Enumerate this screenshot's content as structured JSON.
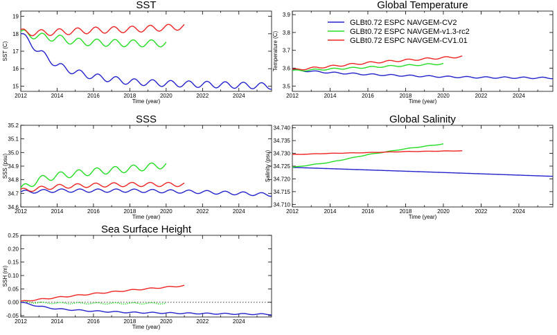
{
  "legend": [
    {
      "name": "GLBt0.72 ESPC NAVGEM-CV2",
      "color": "#2222cc"
    },
    {
      "name": "GLBt0.72 ESPC NAVGEM-v1.3-rc2",
      "color": "#22dd22"
    },
    {
      "name": "GLBt0.72 ESPC NAVGEM-CV1.01",
      "color": "#ee2222"
    }
  ],
  "chart_data": [
    {
      "id": "sst",
      "type": "line",
      "title": "SST",
      "xlabel": "Time (year)",
      "ylabel": "SST (C)",
      "xlim": [
        2012,
        2025.8
      ],
      "ylim": [
        14.7,
        19.3
      ],
      "xticks": [
        2012,
        2014,
        2016,
        2018,
        2020,
        2022,
        2024
      ],
      "yticks": [
        15,
        16,
        17,
        18,
        19
      ],
      "ydecimals": 0,
      "series": [
        {
          "color": "#2222cc",
          "x0": 2012,
          "x1": 2025.8,
          "base": [
            [
              2012,
              18.0
            ],
            [
              2012.5,
              17.5
            ],
            [
              2013,
              17.0
            ],
            [
              2014,
              16.2
            ],
            [
              2015,
              15.8
            ],
            [
              2016,
              15.55
            ],
            [
              2017,
              15.4
            ],
            [
              2018,
              15.25
            ],
            [
              2019,
              15.2
            ],
            [
              2020,
              15.15
            ],
            [
              2022,
              15.1
            ],
            [
              2024,
              15.05
            ],
            [
              2025.8,
              15.0
            ]
          ],
          "amp": 0.18
        },
        {
          "color": "#22dd22",
          "x0": 2012,
          "x1": 2020,
          "base": [
            [
              2012,
              18.05
            ],
            [
              2013,
              17.85
            ],
            [
              2014,
              17.75
            ],
            [
              2015,
              17.55
            ],
            [
              2016,
              17.5
            ],
            [
              2018,
              17.45
            ],
            [
              2020,
              17.45
            ]
          ],
          "amp": 0.2
        },
        {
          "color": "#ee2222",
          "x0": 2012,
          "x1": 2021,
          "base": [
            [
              2012,
              18.1
            ],
            [
              2013,
              18.05
            ],
            [
              2014,
              18.1
            ],
            [
              2016,
              18.2
            ],
            [
              2018,
              18.25
            ],
            [
              2021,
              18.4
            ]
          ],
          "amp": 0.18
        }
      ]
    },
    {
      "id": "gtemp",
      "type": "line",
      "title": "Global Temperature",
      "xlabel": "Time (year)",
      "ylabel": "Temperature (C)",
      "xlim": [
        2012,
        2025.8
      ],
      "ylim": [
        3.47,
        3.92
      ],
      "xticks": [
        2012,
        2014,
        2016,
        2018,
        2020,
        2022,
        2024
      ],
      "yticks": [
        3.5,
        3.6,
        3.7,
        3.8,
        3.9
      ],
      "ydecimals": 1,
      "series": [
        {
          "color": "#2222cc",
          "x0": 2012,
          "x1": 2025.8,
          "base": [
            [
              2012,
              3.59
            ],
            [
              2014,
              3.575
            ],
            [
              2016,
              3.565
            ],
            [
              2018,
              3.558
            ],
            [
              2020,
              3.552
            ],
            [
              2022,
              3.548
            ],
            [
              2025.8,
              3.545
            ]
          ],
          "amp": 0.004
        },
        {
          "color": "#22dd22",
          "x0": 2012,
          "x1": 2020,
          "base": [
            [
              2012,
              3.585
            ],
            [
              2014,
              3.595
            ],
            [
              2016,
              3.605
            ],
            [
              2018,
              3.615
            ],
            [
              2020,
              3.625
            ]
          ],
          "amp": 0.004
        },
        {
          "color": "#ee2222",
          "x0": 2012,
          "x1": 2021,
          "base": [
            [
              2012,
              3.59
            ],
            [
              2014,
              3.61
            ],
            [
              2016,
              3.63
            ],
            [
              2018,
              3.645
            ],
            [
              2021,
              3.665
            ]
          ],
          "amp": 0.005
        }
      ]
    },
    {
      "id": "sss",
      "type": "line",
      "title": "SSS",
      "xlabel": "Time (year)",
      "ylabel": "SSS (psu)",
      "xlim": [
        2012,
        2025.8
      ],
      "ylim": [
        34.6,
        35.2
      ],
      "xticks": [
        2012,
        2014,
        2016,
        2018,
        2020,
        2022,
        2024
      ],
      "yticks": [
        34.6,
        34.7,
        34.8,
        34.9,
        35.0,
        35.1,
        35.2
      ],
      "ydecimals": 1,
      "series": [
        {
          "color": "#2222cc",
          "x0": 2012,
          "x1": 2025.8,
          "base": [
            [
              2012,
              34.71
            ],
            [
              2014,
              34.72
            ],
            [
              2016,
              34.72
            ],
            [
              2018,
              34.72
            ],
            [
              2020,
              34.715
            ],
            [
              2022,
              34.71
            ],
            [
              2024,
              34.7
            ],
            [
              2025.8,
              34.69
            ]
          ],
          "amp": 0.012
        },
        {
          "color": "#22dd22",
          "x0": 2012,
          "x1": 2020,
          "base": [
            [
              2012,
              34.73
            ],
            [
              2013,
              34.8
            ],
            [
              2014,
              34.83
            ],
            [
              2016,
              34.86
            ],
            [
              2018,
              34.88
            ],
            [
              2020,
              34.91
            ]
          ],
          "amp": 0.025
        },
        {
          "color": "#ee2222",
          "x0": 2012,
          "x1": 2021,
          "base": [
            [
              2012,
              34.72
            ],
            [
              2014,
              34.75
            ],
            [
              2016,
              34.76
            ],
            [
              2018,
              34.765
            ],
            [
              2021,
              34.765
            ]
          ],
          "amp": 0.015
        }
      ]
    },
    {
      "id": "gsal",
      "type": "line",
      "title": "Global Salinity",
      "xlabel": "Time (year)",
      "ylabel": "Salinity (psu)",
      "xlim": [
        2012,
        2025.8
      ],
      "ylim": [
        34.709,
        34.741
      ],
      "xticks": [
        2012,
        2014,
        2016,
        2018,
        2020,
        2022,
        2024
      ],
      "yticks": [
        34.71,
        34.715,
        34.72,
        34.725,
        34.73,
        34.735,
        34.74
      ],
      "ydecimals": 3,
      "series": [
        {
          "color": "#2222cc",
          "x0": 2012,
          "x1": 2025.8,
          "base": [
            [
              2012,
              34.7245
            ],
            [
              2016,
              34.7235
            ],
            [
              2020,
              34.7225
            ],
            [
              2025.8,
              34.721
            ]
          ],
          "amp": 0
        },
        {
          "color": "#22dd22",
          "x0": 2012,
          "x1": 2020,
          "base": [
            [
              2012,
              34.7245
            ],
            [
              2014,
              34.7265
            ],
            [
              2016,
              34.7295
            ],
            [
              2018,
              34.7318
            ],
            [
              2020,
              34.7337
            ]
          ],
          "amp": 8e-05
        },
        {
          "color": "#ee2222",
          "x0": 2012,
          "x1": 2021,
          "base": [
            [
              2012,
              34.7295
            ],
            [
              2014,
              34.73
            ],
            [
              2016,
              34.7303
            ],
            [
              2018,
              34.7307
            ],
            [
              2021,
              34.731
            ]
          ],
          "amp": 5e-05
        }
      ]
    },
    {
      "id": "ssh",
      "type": "line",
      "title": "Sea Surface Height",
      "xlabel": "Time (year)",
      "ylabel": "SSH (m)",
      "xlim": [
        2012,
        2025.8
      ],
      "ylim": [
        -0.055,
        0.25
      ],
      "xticks": [
        2012,
        2014,
        2016,
        2018,
        2020,
        2022,
        2024
      ],
      "yticks": [
        -0.05,
        0.0,
        0.05,
        0.1,
        0.15,
        0.2,
        0.25
      ],
      "ydecimals": 2,
      "zero_line": true,
      "series": [
        {
          "color": "#2222cc",
          "x0": 2012,
          "x1": 2025.8,
          "base": [
            [
              2012,
              0.0
            ],
            [
              2013,
              -0.015
            ],
            [
              2014,
              -0.025
            ],
            [
              2016,
              -0.033
            ],
            [
              2018,
              -0.038
            ],
            [
              2020,
              -0.04
            ],
            [
              2022,
              -0.042
            ],
            [
              2025.8,
              -0.045
            ]
          ],
          "amp": 0.002
        },
        {
          "color": "#22dd22",
          "x0": 2012,
          "x1": 2020,
          "base": [
            [
              2012,
              0.003
            ],
            [
              2013,
              -0.002
            ],
            [
              2014,
              -0.003
            ],
            [
              2016,
              -0.004
            ],
            [
              2018,
              -0.004
            ],
            [
              2020,
              -0.004
            ]
          ],
          "amp": 0.0025,
          "dashed": true
        },
        {
          "color": "#ee2222",
          "x0": 2012,
          "x1": 2021,
          "base": [
            [
              2012,
              0.003
            ],
            [
              2014,
              0.018
            ],
            [
              2016,
              0.032
            ],
            [
              2018,
              0.045
            ],
            [
              2021,
              0.062
            ]
          ],
          "amp": 0.002
        }
      ]
    }
  ]
}
